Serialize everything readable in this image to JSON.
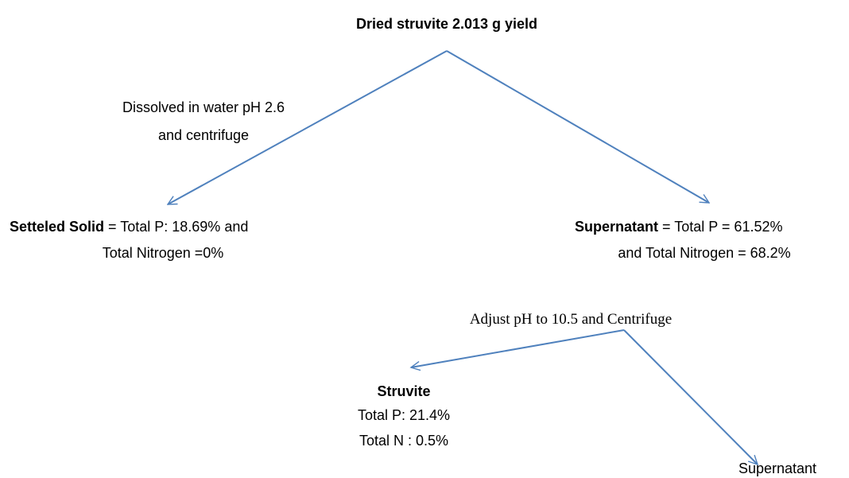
{
  "title": "Dried struvite 2.013 g yield",
  "edges": [
    {
      "label": [
        "Dissolved in water pH 2.6",
        "and centrifuge"
      ]
    },
    {
      "label": [
        "Adjust pH to 10.5 and Centrifuge"
      ]
    }
  ],
  "nodes": [
    {
      "heading": "Setteled Solid",
      "lines": [
        "= Total P: 18.69% and",
        "Total Nitrogen =0%"
      ]
    },
    {
      "heading": "Supernatant",
      "lines": [
        "= Total P = 61.52%",
        "and Total Nitrogen = 68.2%"
      ]
    },
    {
      "heading": "Struvite",
      "lines": [
        "Total P: 21.4%",
        "Total N : 0.5%"
      ]
    },
    {
      "heading": "Supernatant"
    }
  ]
}
